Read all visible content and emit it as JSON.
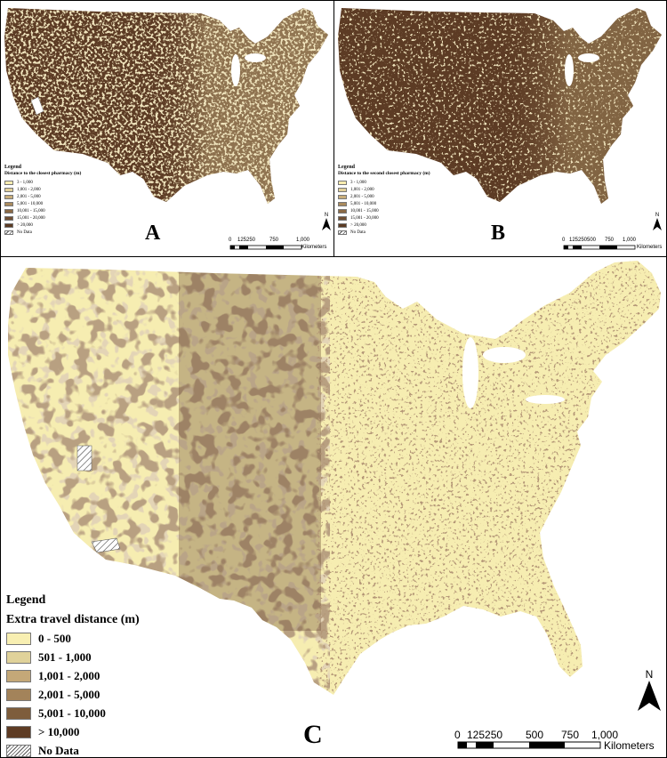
{
  "panels": {
    "a": {
      "label": "A",
      "legend": {
        "title": "Legend",
        "subtitle": "Distance to the closest pharmacy (m)",
        "classes": [
          {
            "label": "3 - 1,000",
            "color": "#f7ecb0"
          },
          {
            "label": "1,001 - 2,000",
            "color": "#e2d09a"
          },
          {
            "label": "2,001 - 5,000",
            "color": "#c8ad7a"
          },
          {
            "label": "5,001 - 10,000",
            "color": "#aa8b5e"
          },
          {
            "label": "10,001 - 15,000",
            "color": "#8b6a45"
          },
          {
            "label": "15,001 - 20,000",
            "color": "#704f33"
          },
          {
            "label": "> 20,000",
            "color": "#5c3b24"
          },
          {
            "label": "No Data",
            "color": "hatch"
          }
        ]
      },
      "scale": {
        "ticks": [
          "0",
          "125250",
          "750",
          "1,000"
        ],
        "unit": "Kilometers"
      },
      "north": "N"
    },
    "b": {
      "label": "B",
      "legend": {
        "title": "Legend",
        "subtitle": "Distance to the second closest pharmacy (m)",
        "classes": [
          {
            "label": "3 - 1,000",
            "color": "#f7ecb0"
          },
          {
            "label": "1,001 - 2,000",
            "color": "#e2d09a"
          },
          {
            "label": "2,001 - 5,000",
            "color": "#c8ad7a"
          },
          {
            "label": "5,001 - 10,000",
            "color": "#aa8b5e"
          },
          {
            "label": "10,001 - 15,000",
            "color": "#8b6a45"
          },
          {
            "label": "15,001 - 20,000",
            "color": "#704f33"
          },
          {
            "label": "> 20,000",
            "color": "#5c3b24"
          },
          {
            "label": "No Data",
            "color": "hatch"
          }
        ]
      },
      "scale": {
        "ticks": [
          "0",
          "125250",
          "500",
          "750",
          "1,000"
        ],
        "unit": "Kilometers"
      },
      "north": "N"
    },
    "c": {
      "label": "C",
      "legend": {
        "title": "Legend",
        "subtitle": "Extra travel distance (m)",
        "classes": [
          {
            "label": "0 - 500",
            "color": "#f8efb2"
          },
          {
            "label": "501 - 1,000",
            "color": "#e0d29a"
          },
          {
            "label": "1,001 - 2,000",
            "color": "#c4a878"
          },
          {
            "label": "2,001 - 5,000",
            "color": "#a3835a"
          },
          {
            "label": "5,001 - 10,000",
            "color": "#7e5d3c"
          },
          {
            "label": "> 10,000",
            "color": "#5e3c24"
          },
          {
            "label": "No Data",
            "color": "hatch"
          }
        ]
      },
      "scale": {
        "ticks": [
          "0",
          "125250",
          "500",
          "750",
          "1,000"
        ],
        "unit": "Kilometers"
      },
      "north": "N"
    }
  }
}
